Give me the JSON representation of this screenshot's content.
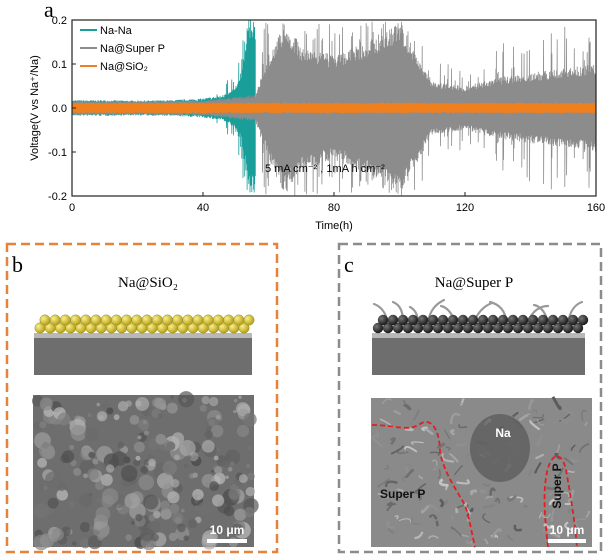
{
  "panels": {
    "a": {
      "letter": "a"
    },
    "b": {
      "letter": "b",
      "title": "Na@SiO₂",
      "scale_bar": "10 μm"
    },
    "c": {
      "letter": "c",
      "title": "Na@Super P",
      "scale_bar": "10 μm",
      "sem_labels": {
        "na": "Na",
        "super_p_left": "Super P",
        "super_p_right": "Super P"
      }
    }
  },
  "colors": {
    "na_na": "#1a9e99",
    "na_super_p": "#8c8c8c",
    "na_sio2": "#f07f1e",
    "panel_b_border": "#e8823a",
    "panel_c_border": "#8c8c8c",
    "dendrite_outline": "#e02020"
  },
  "chart_data": {
    "type": "line",
    "xlabel": "Time(h)",
    "ylabel": "Voltage(V vs Na⁺/Na)",
    "xlim": [
      0,
      160
    ],
    "ylim": [
      -0.2,
      0.2
    ],
    "xticks": [
      "0",
      "40",
      "80",
      "120",
      "160"
    ],
    "yticks": [
      "-0.2",
      "-0.1",
      "0.0",
      "0.1",
      "0.2"
    ],
    "annotation": "5 mA cm⁻² , 1mA h cm⁻²",
    "legend_position": "top-left",
    "series": [
      {
        "name": "Na-Na",
        "color": "#1a9e99",
        "x": [
          0,
          10,
          20,
          30,
          40,
          45,
          48,
          50,
          52,
          54,
          56
        ],
        "amplitude": [
          0.018,
          0.018,
          0.017,
          0.018,
          0.022,
          0.028,
          0.035,
          0.05,
          0.09,
          0.2,
          0.2
        ]
      },
      {
        "name": "Na@Super P",
        "color": "#8c8c8c",
        "x": [
          0,
          20,
          40,
          56,
          60,
          65,
          70,
          80,
          90,
          100,
          110,
          120,
          130,
          140,
          150,
          160
        ],
        "amplitude": [
          0.016,
          0.016,
          0.017,
          0.03,
          0.12,
          0.2,
          0.14,
          0.12,
          0.15,
          0.2,
          0.06,
          0.05,
          0.07,
          0.08,
          0.09,
          0.1
        ]
      },
      {
        "name": "Na@SiO₂",
        "color": "#f07f1e",
        "x": [
          0,
          160
        ],
        "amplitude": [
          0.012,
          0.012
        ]
      }
    ]
  }
}
